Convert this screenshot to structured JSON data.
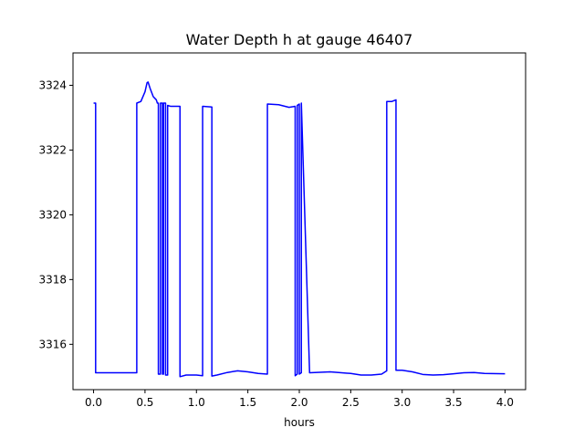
{
  "chart_data": {
    "type": "line",
    "title": "Water Depth h at gauge 46407",
    "xlabel": "hours",
    "ylabel": "",
    "xlim": [
      -0.2,
      4.2
    ],
    "ylim": [
      3314.6,
      3325.0
    ],
    "xticks": [
      0.0,
      0.5,
      1.0,
      1.5,
      2.0,
      2.5,
      3.0,
      3.5,
      4.0
    ],
    "xtick_labels": [
      "0.0",
      "0.5",
      "1.0",
      "1.5",
      "2.0",
      "2.5",
      "3.0",
      "3.5",
      "4.0"
    ],
    "yticks": [
      3316,
      3318,
      3320,
      3322,
      3324
    ],
    "ytick_labels": [
      "3316",
      "3318",
      "3320",
      "3322",
      "3324"
    ],
    "grid": false,
    "line_color": "#0000ff",
    "series": [
      {
        "x": [
          0.0,
          0.02,
          0.02,
          0.42,
          0.42,
          0.46,
          0.5,
          0.52,
          0.53,
          0.55,
          0.58,
          0.61,
          0.62,
          0.63,
          0.63,
          0.65,
          0.65,
          0.67,
          0.67,
          0.68,
          0.68,
          0.7,
          0.7,
          0.72,
          0.72,
          0.75,
          0.75,
          0.82,
          0.82,
          0.84,
          0.84,
          0.9,
          1.0,
          1.06,
          1.06,
          1.15,
          1.15,
          1.2,
          1.3,
          1.4,
          1.5,
          1.6,
          1.69,
          1.69,
          1.8,
          1.9,
          1.96,
          1.96,
          1.98,
          1.98,
          2.0,
          2.0,
          2.02,
          2.02,
          2.1,
          2.3,
          2.5,
          2.6,
          2.7,
          2.8,
          2.85,
          2.85,
          2.9,
          2.94,
          2.94,
          3.0,
          3.1,
          3.2,
          3.3,
          3.4,
          3.5,
          3.6,
          3.7,
          3.8,
          4.0
        ],
        "y": [
          3323.45,
          3323.45,
          3315.12,
          3315.12,
          3323.45,
          3323.5,
          3323.8,
          3324.08,
          3324.1,
          3323.9,
          3323.65,
          3323.55,
          3323.45,
          3323.45,
          3315.08,
          3315.08,
          3323.45,
          3323.45,
          3315.08,
          3315.08,
          3323.45,
          3323.45,
          3315.05,
          3315.05,
          3323.38,
          3323.35,
          3323.35,
          3323.35,
          3323.35,
          3323.35,
          3315.0,
          3315.05,
          3315.05,
          3315.03,
          3323.35,
          3323.33,
          3315.02,
          3315.05,
          3315.13,
          3315.18,
          3315.15,
          3315.1,
          3315.08,
          3323.42,
          3323.4,
          3323.32,
          3323.35,
          3315.03,
          3315.08,
          3323.38,
          3323.42,
          3315.08,
          3315.12,
          3323.45,
          3315.12,
          3315.15,
          3315.1,
          3315.05,
          3315.05,
          3315.08,
          3315.18,
          3323.5,
          3323.5,
          3323.55,
          3315.2,
          3315.2,
          3315.15,
          3315.07,
          3315.05,
          3315.06,
          3315.09,
          3315.12,
          3315.13,
          3315.1,
          3315.09
        ]
      }
    ]
  }
}
